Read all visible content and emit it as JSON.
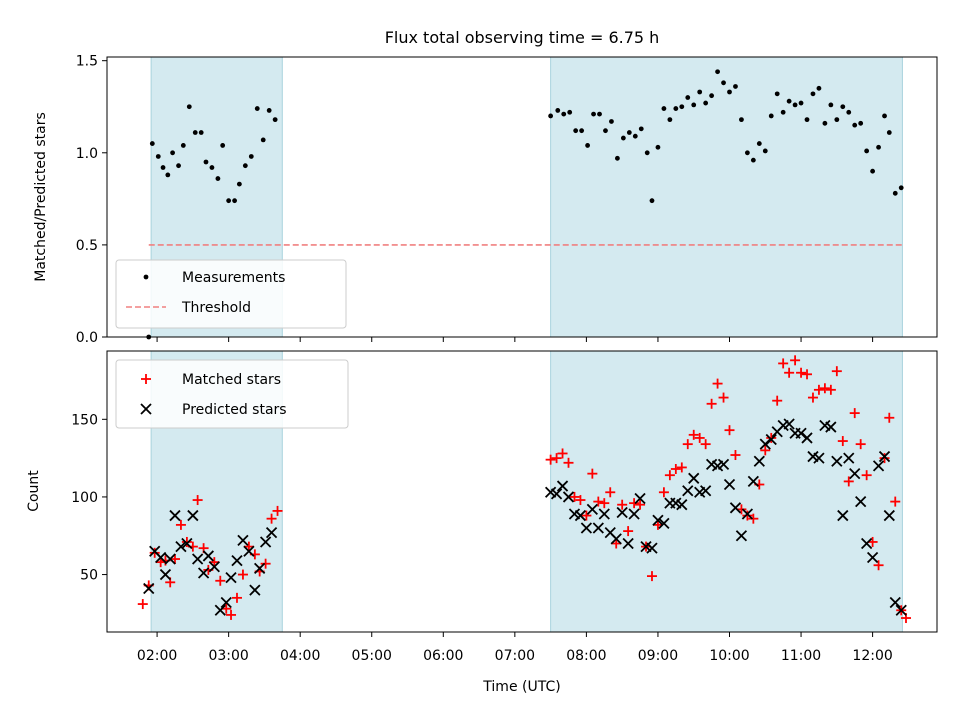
{
  "chart_data": [
    {
      "type": "scatter",
      "title": "Flux total observing time = 6.75 h",
      "xlabel": "",
      "ylabel": "Matched/Predicted stars",
      "xlim": [
        "01:18",
        "12:54"
      ],
      "ylim": [
        0,
        1.52
      ],
      "yticks": [
        "0.0",
        "0.5",
        "1.0",
        "1.5"
      ],
      "shaded_intervals": [
        [
          "01:55",
          "03:45"
        ],
        [
          "07:30",
          "12:25"
        ]
      ],
      "legend_position": "lower-left",
      "threshold": {
        "name": "Threshold",
        "value": 0.5,
        "x_range": [
          "01:53",
          "12:25"
        ],
        "color": "#f08080"
      },
      "series": [
        {
          "name": "Measurements",
          "marker": "dot",
          "color": "#000000",
          "points": [
            [
              "01:53",
              0.0
            ],
            [
              "01:56",
              1.05
            ],
            [
              "02:01",
              0.98
            ],
            [
              "02:05",
              0.92
            ],
            [
              "02:09",
              0.88
            ],
            [
              "02:13",
              1.0
            ],
            [
              "02:18",
              0.93
            ],
            [
              "02:22",
              1.04
            ],
            [
              "02:27",
              1.25
            ],
            [
              "02:32",
              1.11
            ],
            [
              "02:37",
              1.11
            ],
            [
              "02:41",
              0.95
            ],
            [
              "02:46",
              0.92
            ],
            [
              "02:51",
              0.86
            ],
            [
              "02:55",
              1.04
            ],
            [
              "03:00",
              0.74
            ],
            [
              "03:05",
              0.74
            ],
            [
              "03:09",
              0.83
            ],
            [
              "03:14",
              0.93
            ],
            [
              "03:19",
              0.98
            ],
            [
              "03:24",
              1.24
            ],
            [
              "03:29",
              1.07
            ],
            [
              "03:34",
              1.23
            ],
            [
              "03:39",
              1.18
            ],
            [
              "07:30",
              1.2
            ],
            [
              "07:36",
              1.23
            ],
            [
              "07:41",
              1.21
            ],
            [
              "07:46",
              1.22
            ],
            [
              "07:51",
              1.12
            ],
            [
              "07:56",
              1.12
            ],
            [
              "08:01",
              1.04
            ],
            [
              "08:06",
              1.21
            ],
            [
              "08:11",
              1.21
            ],
            [
              "08:16",
              1.12
            ],
            [
              "08:21",
              1.17
            ],
            [
              "08:26",
              0.97
            ],
            [
              "08:31",
              1.08
            ],
            [
              "08:36",
              1.11
            ],
            [
              "08:41",
              1.09
            ],
            [
              "08:46",
              1.13
            ],
            [
              "08:51",
              1.0
            ],
            [
              "08:55",
              0.74
            ],
            [
              "09:00",
              1.03
            ],
            [
              "09:05",
              1.24
            ],
            [
              "09:10",
              1.18
            ],
            [
              "09:15",
              1.24
            ],
            [
              "09:20",
              1.25
            ],
            [
              "09:25",
              1.3
            ],
            [
              "09:30",
              1.26
            ],
            [
              "09:35",
              1.33
            ],
            [
              "09:40",
              1.27
            ],
            [
              "09:45",
              1.31
            ],
            [
              "09:50",
              1.44
            ],
            [
              "09:55",
              1.38
            ],
            [
              "10:00",
              1.33
            ],
            [
              "10:05",
              1.36
            ],
            [
              "10:10",
              1.18
            ],
            [
              "10:15",
              1.0
            ],
            [
              "10:20",
              0.96
            ],
            [
              "10:25",
              1.05
            ],
            [
              "10:30",
              1.01
            ],
            [
              "10:35",
              1.2
            ],
            [
              "10:40",
              1.32
            ],
            [
              "10:45",
              1.22
            ],
            [
              "10:50",
              1.28
            ],
            [
              "10:55",
              1.26
            ],
            [
              "11:00",
              1.27
            ],
            [
              "11:05",
              1.18
            ],
            [
              "11:10",
              1.32
            ],
            [
              "11:15",
              1.35
            ],
            [
              "11:20",
              1.16
            ],
            [
              "11:25",
              1.26
            ],
            [
              "11:30",
              1.18
            ],
            [
              "11:35",
              1.25
            ],
            [
              "11:40",
              1.22
            ],
            [
              "11:45",
              1.15
            ],
            [
              "11:50",
              1.16
            ],
            [
              "11:55",
              1.01
            ],
            [
              "12:00",
              0.9
            ],
            [
              "12:05",
              1.03
            ],
            [
              "12:10",
              1.2
            ],
            [
              "12:14",
              1.11
            ],
            [
              "12:19",
              0.78
            ],
            [
              "12:24",
              0.81
            ]
          ]
        }
      ]
    },
    {
      "type": "scatter",
      "title": "",
      "xlabel": "Time (UTC)",
      "ylabel": "Count",
      "xlim": [
        "01:18",
        "12:54"
      ],
      "ylim": [
        13,
        194
      ],
      "yticks": [
        "50",
        "100",
        "150"
      ],
      "xticks": [
        "02:00",
        "03:00",
        "04:00",
        "05:00",
        "06:00",
        "07:00",
        "08:00",
        "09:00",
        "10:00",
        "11:00",
        "12:00"
      ],
      "shaded_intervals": [
        [
          "01:55",
          "03:45"
        ],
        [
          "07:30",
          "12:25"
        ]
      ],
      "legend_position": "upper-left",
      "series": [
        {
          "name": "Matched stars",
          "marker": "plus",
          "color": "#ff0000",
          "points": [
            [
              "01:48",
              31
            ],
            [
              "01:53",
              43
            ],
            [
              "01:58",
              64
            ],
            [
              "02:03",
              58
            ],
            [
              "02:07",
              59
            ],
            [
              "02:11",
              45
            ],
            [
              "02:15",
              60
            ],
            [
              "02:20",
              82
            ],
            [
              "02:25",
              71
            ],
            [
              "02:30",
              68
            ],
            [
              "02:34",
              98
            ],
            [
              "02:39",
              67
            ],
            [
              "02:43",
              53
            ],
            [
              "02:48",
              58
            ],
            [
              "02:53",
              46
            ],
            [
              "02:58",
              28
            ],
            [
              "03:02",
              24
            ],
            [
              "03:07",
              35
            ],
            [
              "03:12",
              50
            ],
            [
              "03:17",
              68
            ],
            [
              "03:22",
              63
            ],
            [
              "03:26",
              52
            ],
            [
              "03:31",
              57
            ],
            [
              "03:36",
              86
            ],
            [
              "03:41",
              91
            ],
            [
              "07:30",
              124
            ],
            [
              "07:35",
              125
            ],
            [
              "07:40",
              128
            ],
            [
              "07:45",
              122
            ],
            [
              "07:50",
              100
            ],
            [
              "07:55",
              98
            ],
            [
              "08:00",
              88
            ],
            [
              "08:05",
              115
            ],
            [
              "08:10",
              97
            ],
            [
              "08:15",
              96
            ],
            [
              "08:20",
              103
            ],
            [
              "08:25",
              70
            ],
            [
              "08:30",
              95
            ],
            [
              "08:35",
              78
            ],
            [
              "08:40",
              96
            ],
            [
              "08:45",
              95
            ],
            [
              "08:50",
              68
            ],
            [
              "08:55",
              49
            ],
            [
              "09:00",
              82
            ],
            [
              "09:05",
              103
            ],
            [
              "09:10",
              114
            ],
            [
              "09:15",
              118
            ],
            [
              "09:20",
              119
            ],
            [
              "09:25",
              134
            ],
            [
              "09:30",
              140
            ],
            [
              "09:35",
              138
            ],
            [
              "09:40",
              134
            ],
            [
              "09:45",
              160
            ],
            [
              "09:50",
              173
            ],
            [
              "09:55",
              164
            ],
            [
              "10:00",
              143
            ],
            [
              "10:05",
              127
            ],
            [
              "10:10",
              92
            ],
            [
              "10:15",
              88
            ],
            [
              "10:20",
              86
            ],
            [
              "10:25",
              108
            ],
            [
              "10:30",
              130
            ],
            [
              "10:35",
              138
            ],
            [
              "10:40",
              162
            ],
            [
              "10:45",
              186
            ],
            [
              "10:50",
              180
            ],
            [
              "10:55",
              188
            ],
            [
              "11:00",
              180
            ],
            [
              "11:05",
              179
            ],
            [
              "11:10",
              164
            ],
            [
              "11:15",
              169
            ],
            [
              "11:20",
              170
            ],
            [
              "11:25",
              169
            ],
            [
              "11:30",
              181
            ],
            [
              "11:35",
              136
            ],
            [
              "11:40",
              110
            ],
            [
              "11:45",
              154
            ],
            [
              "11:50",
              134
            ],
            [
              "11:55",
              114
            ],
            [
              "12:00",
              71
            ],
            [
              "12:05",
              56
            ],
            [
              "12:10",
              125
            ],
            [
              "12:14",
              151
            ],
            [
              "12:19",
              97
            ],
            [
              "12:24",
              27
            ],
            [
              "12:28",
              22
            ]
          ]
        },
        {
          "name": "Predicted stars",
          "marker": "x",
          "color": "#000000",
          "points": [
            [
              "01:53",
              41
            ],
            [
              "01:58",
              65
            ],
            [
              "02:03",
              61
            ],
            [
              "02:07",
              50
            ],
            [
              "02:11",
              60
            ],
            [
              "02:15",
              88
            ],
            [
              "02:20",
              68
            ],
            [
              "02:25",
              70
            ],
            [
              "02:30",
              88
            ],
            [
              "02:34",
              60
            ],
            [
              "02:39",
              51
            ],
            [
              "02:43",
              62
            ],
            [
              "02:48",
              55
            ],
            [
              "02:53",
              27
            ],
            [
              "02:58",
              32
            ],
            [
              "03:02",
              48
            ],
            [
              "03:07",
              59
            ],
            [
              "03:12",
              72
            ],
            [
              "03:17",
              65
            ],
            [
              "03:22",
              40
            ],
            [
              "03:26",
              54
            ],
            [
              "03:31",
              71
            ],
            [
              "03:36",
              77
            ],
            [
              "07:30",
              103
            ],
            [
              "07:35",
              102
            ],
            [
              "07:40",
              107
            ],
            [
              "07:45",
              100
            ],
            [
              "07:50",
              89
            ],
            [
              "07:55",
              88
            ],
            [
              "08:00",
              80
            ],
            [
              "08:05",
              92
            ],
            [
              "08:10",
              80
            ],
            [
              "08:15",
              89
            ],
            [
              "08:20",
              77
            ],
            [
              "08:25",
              73
            ],
            [
              "08:30",
              90
            ],
            [
              "08:35",
              70
            ],
            [
              "08:40",
              89
            ],
            [
              "08:45",
              99
            ],
            [
              "08:50",
              68
            ],
            [
              "08:55",
              67
            ],
            [
              "09:00",
              85
            ],
            [
              "09:05",
              83
            ],
            [
              "09:10",
              96
            ],
            [
              "09:15",
              96
            ],
            [
              "09:20",
              95
            ],
            [
              "09:25",
              104
            ],
            [
              "09:30",
              112
            ],
            [
              "09:35",
              103
            ],
            [
              "09:40",
              104
            ],
            [
              "09:45",
              121
            ],
            [
              "09:50",
              120
            ],
            [
              "09:55",
              121
            ],
            [
              "10:00",
              108
            ],
            [
              "10:05",
              93
            ],
            [
              "10:10",
              75
            ],
            [
              "10:15",
              89
            ],
            [
              "10:20",
              110
            ],
            [
              "10:25",
              123
            ],
            [
              "10:30",
              134
            ],
            [
              "10:35",
              137
            ],
            [
              "10:40",
              142
            ],
            [
              "10:45",
              146
            ],
            [
              "10:50",
              147
            ],
            [
              "10:55",
              141
            ],
            [
              "11:00",
              141
            ],
            [
              "11:05",
              138
            ],
            [
              "11:10",
              126
            ],
            [
              "11:15",
              125
            ],
            [
              "11:20",
              146
            ],
            [
              "11:25",
              145
            ],
            [
              "11:30",
              123
            ],
            [
              "11:35",
              88
            ],
            [
              "11:40",
              125
            ],
            [
              "11:45",
              115
            ],
            [
              "11:50",
              97
            ],
            [
              "11:55",
              70
            ],
            [
              "12:00",
              61
            ],
            [
              "12:05",
              120
            ],
            [
              "12:10",
              126
            ],
            [
              "12:14",
              88
            ],
            [
              "12:19",
              32
            ],
            [
              "12:24",
              27
            ]
          ]
        }
      ]
    }
  ]
}
